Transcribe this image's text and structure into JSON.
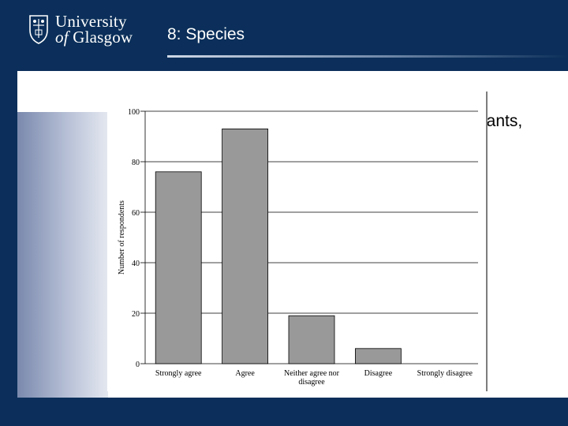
{
  "header": {
    "logo_line1": "University",
    "logo_of": "of",
    "logo_line2_rest": "Glasgow",
    "title": "8: Species"
  },
  "background_text": "lants,",
  "chart_data": {
    "type": "bar",
    "title": "",
    "xlabel": "",
    "ylabel": "Number of respondents",
    "categories": [
      "Strongly agree",
      "Agree",
      "Neither agree nor disagree",
      "Disagree",
      "Strongly disagree"
    ],
    "category_lines": [
      [
        "Strongly agree"
      ],
      [
        "Agree"
      ],
      [
        "Neither agree nor",
        "disagree"
      ],
      [
        "Disagree"
      ],
      [
        "Strongly disagree"
      ]
    ],
    "values": [
      76,
      93,
      19,
      6,
      0
    ],
    "ylim": [
      0,
      100
    ],
    "yticks": [
      0,
      20,
      40,
      60,
      80,
      100
    ],
    "grid": true,
    "bar_color": "#999999"
  }
}
